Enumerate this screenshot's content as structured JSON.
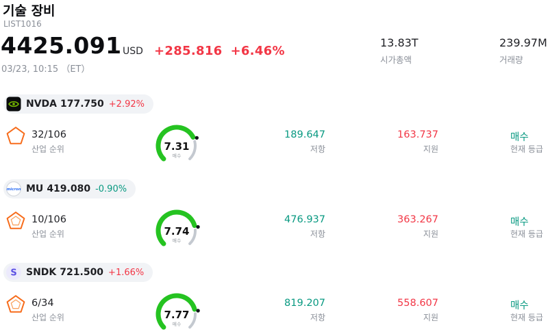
{
  "colors": {
    "red": "#f23645",
    "teal": "#089981",
    "gauge_green": "#25c321"
  },
  "header": {
    "title": "기술 장비",
    "list_id": "LIST1016",
    "price": "4425.091",
    "currency": "USD",
    "change_abs": "+285.816",
    "change_pct": "+6.46%",
    "datetime": "03/23, 10:15 （ET）",
    "market_cap": {
      "value": "13.83T",
      "label": "시가총액"
    },
    "volume": {
      "value": "239.97M",
      "label": "거래량"
    }
  },
  "labels": {
    "industry_rank": "산업 순위",
    "resistance": "저항",
    "support": "지원",
    "current_rating": "현재 등급"
  },
  "stocks": [
    {
      "ticker": "NVDA",
      "price": "177.750",
      "change": "+2.92%",
      "change_dir": "up",
      "industry_rank": "32/106",
      "gauge_value": "7.31",
      "gauge_label": "매수",
      "resistance": "189.647",
      "support": "163.737",
      "rating": "매수"
    },
    {
      "ticker": "MU",
      "price": "419.080",
      "change": "-0.90%",
      "change_dir": "down",
      "industry_rank": "10/106",
      "gauge_value": "7.74",
      "gauge_label": "매수",
      "resistance": "476.937",
      "support": "363.267",
      "rating": "매수"
    },
    {
      "ticker": "SNDK",
      "price": "721.500",
      "change": "+1.66%",
      "change_dir": "up",
      "industry_rank": "6/34",
      "gauge_value": "7.77",
      "gauge_label": "매수",
      "resistance": "819.207",
      "support": "558.607",
      "rating": "매수"
    }
  ]
}
